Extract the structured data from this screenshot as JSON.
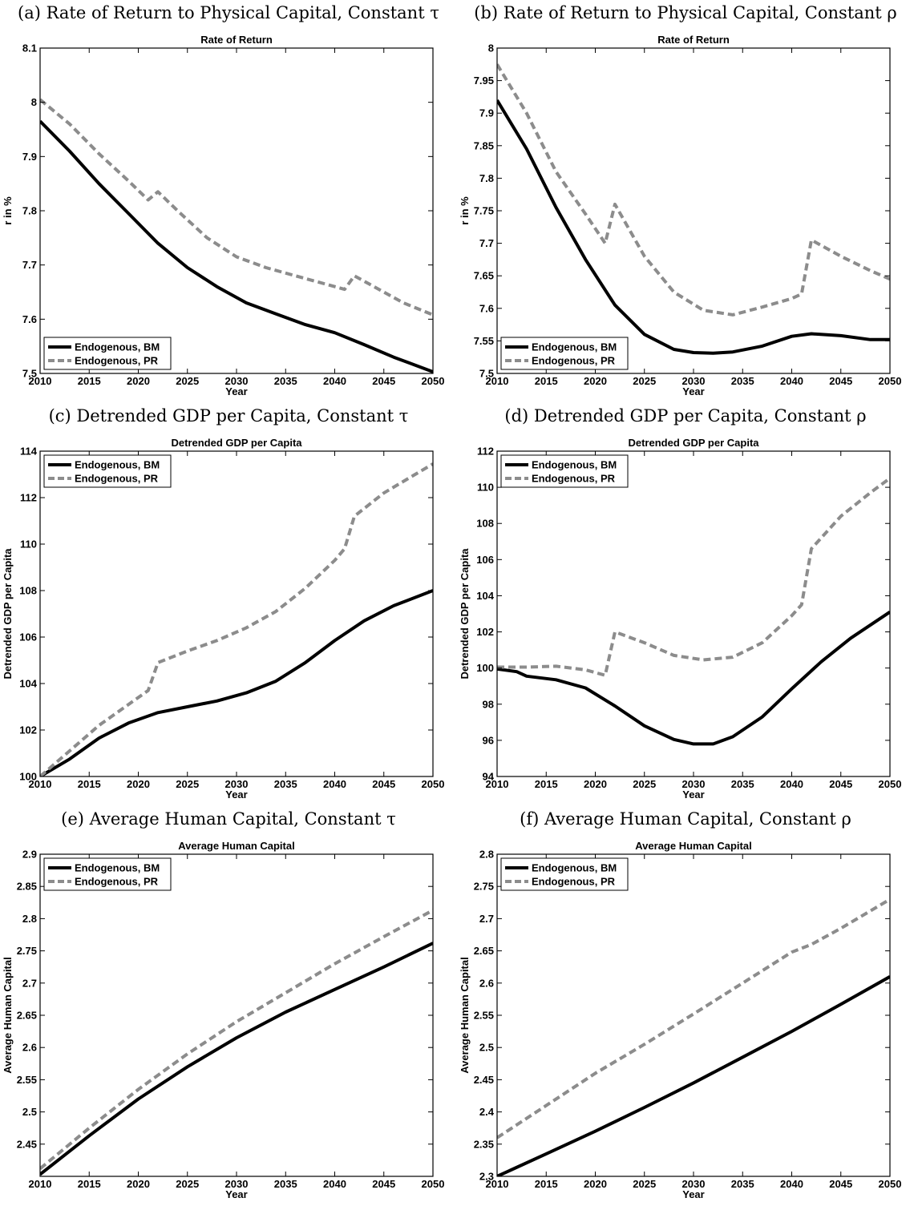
{
  "chart_data": [
    {
      "id": "a",
      "caption": "(a) Rate of Return to Physical Capital, Constant τ",
      "type": "line",
      "title": "Rate of Return",
      "xlabel": "Year",
      "ylabel": "r in %",
      "xlim": [
        2010,
        2050
      ],
      "ylim": [
        7.5,
        8.1
      ],
      "xticks": [
        2010,
        2015,
        2020,
        2025,
        2030,
        2035,
        2040,
        2045,
        2050
      ],
      "yticks": [
        7.5,
        7.6,
        7.7,
        7.8,
        7.9,
        8.0,
        8.1
      ],
      "ytick_labels": [
        "7.5",
        "7.6",
        "7.7",
        "7.8",
        "7.9",
        "8",
        "8.1"
      ],
      "grid": false,
      "legend_position": "bottom-left",
      "series": [
        {
          "name": "Endogenous, BM",
          "style": "solid",
          "color": "#000000",
          "x": [
            2010,
            2013,
            2016,
            2019,
            2022,
            2025,
            2028,
            2031,
            2034,
            2037,
            2040,
            2043,
            2046,
            2050
          ],
          "y": [
            7.965,
            7.91,
            7.85,
            7.795,
            7.74,
            7.695,
            7.66,
            7.63,
            7.61,
            7.59,
            7.575,
            7.553,
            7.53,
            7.503
          ]
        },
        {
          "name": "Endogenous, PR",
          "style": "dashed",
          "color": "#8c8c8c",
          "x": [
            2010,
            2013,
            2016,
            2019,
            2021,
            2022,
            2024,
            2027,
            2030,
            2033,
            2036,
            2039,
            2041,
            2042,
            2044,
            2047,
            2050
          ],
          "y": [
            8.005,
            7.96,
            7.905,
            7.855,
            7.82,
            7.835,
            7.8,
            7.75,
            7.715,
            7.695,
            7.68,
            7.665,
            7.655,
            7.68,
            7.66,
            7.63,
            7.608
          ]
        }
      ]
    },
    {
      "id": "b",
      "caption": "(b) Rate of Return to Physical Capital, Constant ρ",
      "type": "line",
      "title": "Rate of Return",
      "xlabel": "Year",
      "ylabel": "r in %",
      "xlim": [
        2010,
        2050
      ],
      "ylim": [
        7.5,
        8.0
      ],
      "xticks": [
        2010,
        2015,
        2020,
        2025,
        2030,
        2035,
        2040,
        2045,
        2050
      ],
      "yticks": [
        7.5,
        7.55,
        7.6,
        7.65,
        7.7,
        7.75,
        7.8,
        7.85,
        7.9,
        7.95,
        8.0
      ],
      "ytick_labels": [
        "7.5",
        "7.55",
        "7.6",
        "7.65",
        "7.7",
        "7.75",
        "7.8",
        "7.85",
        "7.9",
        "7.95",
        "8"
      ],
      "grid": false,
      "legend_position": "bottom-left",
      "series": [
        {
          "name": "Endogenous, BM",
          "style": "solid",
          "color": "#000000",
          "x": [
            2010,
            2013,
            2016,
            2019,
            2022,
            2025,
            2028,
            2030,
            2032,
            2034,
            2037,
            2040,
            2042,
            2045,
            2048,
            2050
          ],
          "y": [
            7.92,
            7.845,
            7.755,
            7.675,
            7.605,
            7.56,
            7.537,
            7.532,
            7.531,
            7.533,
            7.542,
            7.557,
            7.561,
            7.558,
            7.552,
            7.552
          ]
        },
        {
          "name": "Endogenous, PR",
          "style": "dashed",
          "color": "#8c8c8c",
          "x": [
            2010,
            2013,
            2016,
            2019,
            2021,
            2022,
            2025,
            2028,
            2031,
            2034,
            2037,
            2040,
            2041,
            2042,
            2045,
            2048,
            2050
          ],
          "y": [
            7.975,
            7.9,
            7.81,
            7.745,
            7.7,
            7.76,
            7.68,
            7.625,
            7.597,
            7.59,
            7.602,
            7.615,
            7.622,
            7.705,
            7.68,
            7.658,
            7.645
          ]
        }
      ]
    },
    {
      "id": "c",
      "caption": "(c) Detrended GDP per Capita, Constant τ",
      "type": "line",
      "title": "Detrended GDP per Capita",
      "xlabel": "Year",
      "ylabel": "Detrended GDP per Capita",
      "xlim": [
        2010,
        2050
      ],
      "ylim": [
        100,
        114
      ],
      "xticks": [
        2010,
        2015,
        2020,
        2025,
        2030,
        2035,
        2040,
        2045,
        2050
      ],
      "yticks": [
        100,
        102,
        104,
        106,
        108,
        110,
        112,
        114
      ],
      "ytick_labels": [
        "100",
        "102",
        "104",
        "106",
        "108",
        "110",
        "112",
        "114"
      ],
      "grid": false,
      "legend_position": "top-left",
      "series": [
        {
          "name": "Endogenous, BM",
          "style": "solid",
          "color": "#000000",
          "x": [
            2010,
            2013,
            2016,
            2019,
            2022,
            2025,
            2028,
            2031,
            2034,
            2037,
            2040,
            2043,
            2046,
            2050
          ],
          "y": [
            100.0,
            100.75,
            101.65,
            102.3,
            102.75,
            103.0,
            103.25,
            103.6,
            104.1,
            104.9,
            105.85,
            106.7,
            107.35,
            108.0
          ]
        },
        {
          "name": "Endogenous, PR",
          "style": "dashed",
          "color": "#8c8c8c",
          "x": [
            2010,
            2013,
            2016,
            2019,
            2021,
            2022,
            2025,
            2028,
            2031,
            2034,
            2037,
            2040,
            2041,
            2042,
            2045,
            2048,
            2050
          ],
          "y": [
            100.0,
            101.1,
            102.2,
            103.1,
            103.7,
            104.9,
            105.4,
            105.85,
            106.4,
            107.1,
            108.1,
            109.3,
            109.8,
            111.2,
            112.2,
            112.95,
            113.45
          ]
        }
      ]
    },
    {
      "id": "d",
      "caption": "(d) Detrended GDP per Capita, Constant ρ",
      "type": "line",
      "title": "Detrended GDP per Capita",
      "xlabel": "Year",
      "ylabel": "Detrended GDP per Capita",
      "xlim": [
        2010,
        2050
      ],
      "ylim": [
        94,
        112
      ],
      "xticks": [
        2010,
        2015,
        2020,
        2025,
        2030,
        2035,
        2040,
        2045,
        2050
      ],
      "yticks": [
        94,
        96,
        98,
        100,
        102,
        104,
        106,
        108,
        110,
        112
      ],
      "ytick_labels": [
        "94",
        "96",
        "98",
        "100",
        "102",
        "104",
        "106",
        "108",
        "110",
        "112"
      ],
      "grid": false,
      "legend_position": "top-left",
      "series": [
        {
          "name": "Endogenous, BM",
          "style": "solid",
          "color": "#000000",
          "x": [
            2010,
            2012,
            2013,
            2016,
            2019,
            2022,
            2025,
            2028,
            2030,
            2032,
            2034,
            2037,
            2040,
            2043,
            2046,
            2050
          ],
          "y": [
            99.95,
            99.8,
            99.55,
            99.35,
            98.9,
            97.9,
            96.8,
            96.05,
            95.8,
            95.8,
            96.2,
            97.3,
            98.85,
            100.35,
            101.65,
            103.1
          ]
        },
        {
          "name": "Endogenous, PR",
          "style": "dashed",
          "color": "#8c8c8c",
          "x": [
            2010,
            2013,
            2016,
            2019,
            2021,
            2022,
            2025,
            2028,
            2031,
            2034,
            2037,
            2040,
            2041,
            2042,
            2045,
            2048,
            2050
          ],
          "y": [
            100.05,
            100.05,
            100.1,
            99.9,
            99.6,
            102.0,
            101.4,
            100.7,
            100.45,
            100.6,
            101.4,
            102.9,
            103.5,
            106.6,
            108.4,
            109.7,
            110.5
          ]
        }
      ]
    },
    {
      "id": "e",
      "caption": "(e) Average Human Capital, Constant τ",
      "type": "line",
      "title": "Average Human Capital",
      "xlabel": "Year",
      "ylabel": "Average Human Capital",
      "xlim": [
        2010,
        2050
      ],
      "ylim": [
        2.4,
        2.9
      ],
      "xticks": [
        2010,
        2015,
        2020,
        2025,
        2030,
        2035,
        2040,
        2045,
        2050
      ],
      "yticks": [
        2.45,
        2.5,
        2.55,
        2.6,
        2.65,
        2.7,
        2.75,
        2.8,
        2.85,
        2.9
      ],
      "ytick_labels": [
        "2.45",
        "2.5",
        "2.55",
        "2.6",
        "2.65",
        "2.7",
        "2.75",
        "2.8",
        "2.85",
        "2.9"
      ],
      "grid": false,
      "legend_position": "top-left",
      "series": [
        {
          "name": "Endogenous, BM",
          "style": "solid",
          "color": "#000000",
          "x": [
            2010,
            2015,
            2020,
            2025,
            2030,
            2035,
            2040,
            2045,
            2050
          ],
          "y": [
            2.403,
            2.463,
            2.52,
            2.57,
            2.615,
            2.655,
            2.69,
            2.725,
            2.762
          ]
        },
        {
          "name": "Endogenous, PR",
          "style": "dashed",
          "color": "#8c8c8c",
          "x": [
            2010,
            2015,
            2020,
            2025,
            2030,
            2035,
            2040,
            2045,
            2050
          ],
          "y": [
            2.412,
            2.475,
            2.535,
            2.59,
            2.64,
            2.685,
            2.73,
            2.772,
            2.813
          ]
        }
      ]
    },
    {
      "id": "f",
      "caption": "(f) Average Human Capital, Constant ρ",
      "type": "line",
      "title": "Average Human Capital",
      "xlabel": "Year",
      "ylabel": "Average Human Capital",
      "xlim": [
        2010,
        2050
      ],
      "ylim": [
        2.3,
        2.8
      ],
      "xticks": [
        2010,
        2015,
        2020,
        2025,
        2030,
        2035,
        2040,
        2045,
        2050
      ],
      "yticks": [
        2.3,
        2.35,
        2.4,
        2.45,
        2.5,
        2.55,
        2.6,
        2.65,
        2.7,
        2.75,
        2.8
      ],
      "ytick_labels": [
        "2.3",
        "2.35",
        "2.4",
        "2.45",
        "2.5",
        "2.55",
        "2.6",
        "2.65",
        "2.7",
        "2.75",
        "2.8"
      ],
      "grid": false,
      "legend_position": "top-left",
      "series": [
        {
          "name": "Endogenous, BM",
          "style": "solid",
          "color": "#000000",
          "x": [
            2010,
            2015,
            2020,
            2025,
            2030,
            2035,
            2040,
            2045,
            2050
          ],
          "y": [
            2.3,
            2.335,
            2.37,
            2.407,
            2.445,
            2.485,
            2.525,
            2.567,
            2.61
          ]
        },
        {
          "name": "Endogenous, PR",
          "style": "dashed",
          "color": "#8c8c8c",
          "x": [
            2010,
            2015,
            2020,
            2025,
            2030,
            2035,
            2040,
            2042,
            2045,
            2050
          ],
          "y": [
            2.36,
            2.41,
            2.46,
            2.505,
            2.552,
            2.6,
            2.648,
            2.66,
            2.685,
            2.73
          ]
        }
      ]
    }
  ]
}
